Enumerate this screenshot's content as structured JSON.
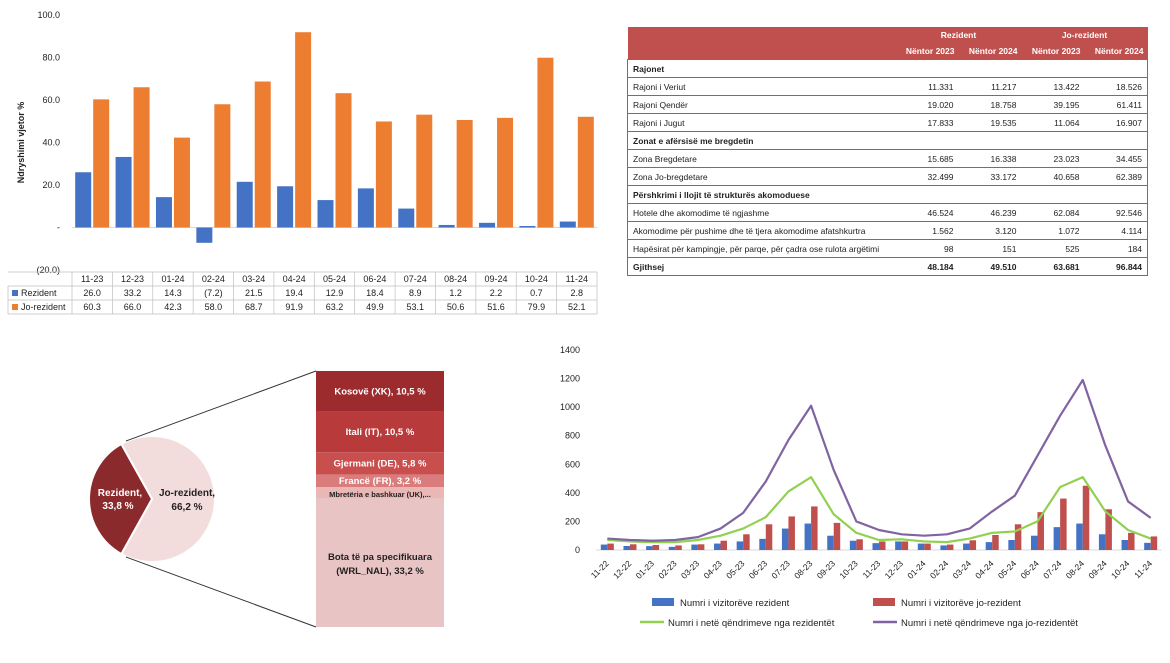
{
  "chart_data": [
    {
      "type": "bar",
      "ylabel": "Ndryshimi vjetor %",
      "ylim": [
        -20,
        100
      ],
      "yticks": [
        "100.0",
        "80.0",
        "60.0",
        "40.0",
        "20.0",
        "-",
        "(20.0)"
      ],
      "categories": [
        "11-23",
        "12-23",
        "01-24",
        "02-24",
        "03-24",
        "04-24",
        "05-24",
        "06-24",
        "07-24",
        "08-24",
        "09-24",
        "10-24",
        "11-24"
      ],
      "series": [
        {
          "name": "Rezident",
          "color": "#4472c4",
          "values": [
            26.0,
            33.2,
            14.3,
            -7.2,
            21.5,
            19.4,
            12.9,
            18.4,
            8.9,
            1.2,
            2.2,
            0.7,
            2.8
          ],
          "labels": [
            "26.0",
            "33.2",
            "14.3",
            "(7.2)",
            "21.5",
            "19.4",
            "12.9",
            "18.4",
            "8.9",
            "1.2",
            "2.2",
            "0.7",
            "2.8"
          ]
        },
        {
          "name": "Jo-rezident",
          "color": "#ed7d31",
          "values": [
            60.3,
            66.0,
            42.3,
            58.0,
            68.7,
            91.9,
            63.2,
            49.9,
            53.1,
            50.6,
            51.6,
            79.9,
            52.1
          ],
          "labels": [
            "60.3",
            "66.0",
            "42.3",
            "58.0",
            "68.7",
            "91.9",
            "63.2",
            "49.9",
            "53.1",
            "50.6",
            "51.6",
            "79.9",
            "52.1"
          ]
        }
      ]
    },
    {
      "type": "table",
      "group_headers": [
        "Rezident",
        "Jo-rezident"
      ],
      "sub_headers": [
        "Nëntor 2023",
        "Nëntor 2024",
        "Nëntor 2023",
        "Nëntor 2024"
      ],
      "rows": [
        {
          "kind": "section",
          "label": "Rajonet"
        },
        {
          "kind": "data",
          "label": "Rajoni i Veriut",
          "values": [
            "11.331",
            "11.217",
            "13.422",
            "18.526"
          ]
        },
        {
          "kind": "data",
          "label": "Rajoni Qendër",
          "values": [
            "19.020",
            "18.758",
            "39.195",
            "61.411"
          ]
        },
        {
          "kind": "data",
          "label": "Rajoni i Jugut",
          "values": [
            "17.833",
            "19.535",
            "11.064",
            "16.907"
          ]
        },
        {
          "kind": "section",
          "label": "Zonat e afërsisë me bregdetin"
        },
        {
          "kind": "data",
          "label": "Zona Bregdetare",
          "values": [
            "15.685",
            "16.338",
            "23.023",
            "34.455"
          ]
        },
        {
          "kind": "data",
          "label": "Zona Jo-bregdetare",
          "values": [
            "32.499",
            "33.172",
            "40.658",
            "62.389"
          ]
        },
        {
          "kind": "section",
          "label": "Përshkrimi i llojit të strukturës akomoduese"
        },
        {
          "kind": "data",
          "label": "Hotele dhe akomodime të ngjashme",
          "values": [
            "46.524",
            "46.239",
            "62.084",
            "92.546"
          ]
        },
        {
          "kind": "data",
          "label": "Akomodime për pushime dhe të tjera akomodime afatshkurtra",
          "values": [
            "1.562",
            "3.120",
            "1.072",
            "4.114"
          ]
        },
        {
          "kind": "data",
          "label": "Hapësirat për kampingje, për parqe, për çadra ose rulota argëtimi",
          "values": [
            "98",
            "151",
            "525",
            "184"
          ]
        },
        {
          "kind": "total",
          "label": "Gjithsej",
          "values": [
            "48.184",
            "49.510",
            "63.681",
            "96.844"
          ]
        }
      ]
    },
    {
      "type": "pie",
      "slices": [
        {
          "label": "Rezident,",
          "value_label": "33,8 %",
          "value": 33.8,
          "color": "#8b2a2c"
        },
        {
          "label": "Jo-rezident,",
          "value_label": "66,2 %",
          "value": 66.2,
          "color": "#f3dcdc"
        }
      ],
      "breakdown": [
        {
          "label": "Kosovë (XK), 10,5 %",
          "value": 10.5,
          "color": "#9c2b2d"
        },
        {
          "label": "Itali (IT), 10,5 %",
          "value": 10.5,
          "color": "#b83a3b"
        },
        {
          "label": "Gjermani (DE), 5,8 %",
          "value": 5.8,
          "color": "#c94e4e"
        },
        {
          "label": "Francë (FR), 3,2 %",
          "value": 3.2,
          "color": "#d97c7b"
        },
        {
          "label": "Mbretëria e bashkuar (UK),...",
          "value": 3.0,
          "color": "#e9b7b6"
        },
        {
          "label": "Bota të pa specifikuara (WRL_NAL), 33,2 %",
          "value": 33.2,
          "color": "#e8c4c4"
        }
      ]
    },
    {
      "type": "bar+line",
      "ylim": [
        0,
        1400
      ],
      "yticks": [
        0,
        200,
        400,
        600,
        800,
        1000,
        1200,
        1400
      ],
      "categories": [
        "11-22",
        "12-22",
        "01-23",
        "02-23",
        "03-23",
        "04-23",
        "05-23",
        "06-23",
        "07-23",
        "08-23",
        "09-23",
        "10-23",
        "11-23",
        "12-23",
        "01-24",
        "02-24",
        "03-24",
        "04-24",
        "05-24",
        "06-24",
        "07-24",
        "08-24",
        "09-24",
        "10-24",
        "11-24"
      ],
      "bar_series": [
        {
          "name": "Numri i vizitorëve rezident",
          "color": "#4472c4",
          "values": [
            38,
            28,
            27,
            22,
            38,
            45,
            60,
            78,
            150,
            185,
            100,
            65,
            48,
            60,
            45,
            32,
            45,
            55,
            70,
            100,
            160,
            185,
            110,
            70,
            50
          ]
        },
        {
          "name": "Numri i vizitorëve jo-rezident",
          "color": "#c0504d",
          "values": [
            45,
            40,
            35,
            32,
            40,
            65,
            110,
            180,
            235,
            305,
            190,
            75,
            60,
            60,
            45,
            38,
            68,
            105,
            180,
            265,
            360,
            450,
            285,
            120,
            95
          ]
        }
      ],
      "line_series": [
        {
          "name": "Numri i netë qëndrimeve nga rezidentët",
          "color": "#92d050",
          "values": [
            70,
            60,
            55,
            55,
            70,
            100,
            150,
            230,
            410,
            510,
            250,
            120,
            70,
            75,
            60,
            55,
            80,
            120,
            130,
            200,
            440,
            510,
            270,
            140,
            80
          ]
        },
        {
          "name": "Numri i netë qëndrimeve nga jo-rezidentët",
          "color": "#8064a2",
          "values": [
            80,
            70,
            65,
            70,
            90,
            150,
            260,
            480,
            770,
            1010,
            560,
            200,
            140,
            110,
            100,
            110,
            150,
            270,
            380,
            660,
            940,
            1190,
            730,
            340,
            225
          ]
        }
      ]
    }
  ]
}
